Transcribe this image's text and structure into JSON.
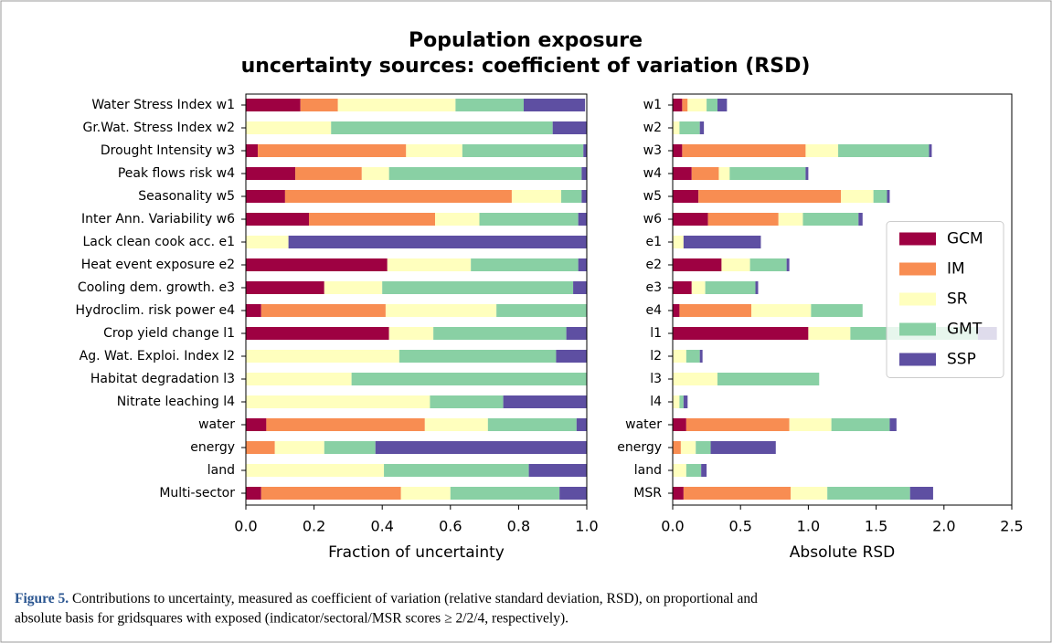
{
  "figure_title": [
    "Population exposure",
    "uncertainty sources: coefficient of variation (RSD)"
  ],
  "chart_data": [
    {
      "type": "stacked-barh",
      "xlabel": "Fraction of uncertainty",
      "categories": [
        "Water Stress Index w1",
        "Gr.Wat. Stress Index w2",
        "Drought Intensity w3",
        "Peak flows risk w4",
        "Seasonality w5",
        "Inter Ann. Variability w6",
        "Lack clean cook acc. e1",
        "Heat event exposure e2",
        "Cooling dem. growth. e3",
        "Hydroclim. risk power e4",
        "Crop yield change l1",
        "Ag. Wat. Exploi. Index l2",
        "Habitat degradation l3",
        "Nitrate leaching l4",
        "water",
        "energy",
        "land",
        "Multi-sector"
      ],
      "xlim": [
        0,
        1
      ],
      "xticks": [
        {
          "value": 0,
          "label": "0.0"
        },
        0.2,
        0.4,
        0.6,
        0.8,
        {
          "value": 1,
          "label": "1.0"
        }
      ],
      "series": [
        {
          "name": "GCM",
          "color": "#9e0142",
          "values": [
            0.16,
            0,
            0.035,
            0.145,
            0.115,
            0.185,
            0,
            0.415,
            0.23,
            0.045,
            0.42,
            0,
            0,
            0,
            0.06,
            0,
            0,
            0.045
          ]
        },
        {
          "name": "IM",
          "color": "#f88d52",
          "values": [
            0.11,
            0,
            0.435,
            0.195,
            0.665,
            0.37,
            0,
            0,
            0,
            0.365,
            0,
            0,
            0,
            0,
            0.465,
            0.085,
            0,
            0.41
          ]
        },
        {
          "name": "SR",
          "color": "#ffffbe",
          "values": [
            0.345,
            0.25,
            0.165,
            0.08,
            0.145,
            0.13,
            0.125,
            0.245,
            0.17,
            0.325,
            0.13,
            0.45,
            0.31,
            0.54,
            0.185,
            0.145,
            0.405,
            0.145
          ]
        },
        {
          "name": "GMT",
          "color": "#89d0a4",
          "values": [
            0.2,
            0.65,
            0.355,
            0.565,
            0.06,
            0.29,
            0,
            0.315,
            0.56,
            0.265,
            0.39,
            0.46,
            0.69,
            0.215,
            0.26,
            0.15,
            0.425,
            0.32
          ]
        },
        {
          "name": "SSP",
          "color": "#5e4fa2",
          "values": [
            0.18,
            0.1,
            0.01,
            0.015,
            0.015,
            0.025,
            0.875,
            0.025,
            0.04,
            0,
            0.06,
            0.09,
            0,
            0.245,
            0.03,
            0.62,
            0.17,
            0.08
          ]
        }
      ]
    },
    {
      "type": "stacked-barh",
      "xlabel": "Absolute RSD",
      "legend": "center right",
      "categories": [
        "w1",
        "w2",
        "w3",
        "w4",
        "w5",
        "w6",
        "e1",
        "e2",
        "e3",
        "e4",
        "l1",
        "l2",
        "l3",
        "l4",
        "water",
        "energy",
        "land",
        "MSR"
      ],
      "xlim": [
        0,
        2.5
      ],
      "xticks": [
        {
          "value": 0,
          "label": "0.0"
        },
        0.5,
        {
          "value": 1,
          "label": "1.0"
        },
        1.5,
        {
          "value": 2,
          "label": "2.0"
        },
        2.5
      ],
      "series": [
        {
          "name": "GCM",
          "color": "#9e0142",
          "values": [
            0.07,
            0,
            0.07,
            0.14,
            0.19,
            0.26,
            0,
            0.36,
            0.14,
            0.05,
            1.0,
            0,
            0,
            0,
            0.1,
            0,
            0,
            0.08
          ]
        },
        {
          "name": "IM",
          "color": "#f88d52",
          "values": [
            0.04,
            0,
            0.91,
            0.2,
            1.05,
            0.52,
            0,
            0,
            0,
            0.53,
            0,
            0,
            0,
            0,
            0.76,
            0.06,
            0,
            0.79
          ]
        },
        {
          "name": "SR",
          "color": "#ffffbe",
          "values": [
            0.14,
            0.05,
            0.24,
            0.08,
            0.24,
            0.18,
            0.08,
            0.21,
            0.1,
            0.44,
            0.31,
            0.1,
            0.33,
            0.05,
            0.31,
            0.11,
            0.1,
            0.27
          ]
        },
        {
          "name": "GMT",
          "color": "#89d0a4",
          "values": [
            0.08,
            0.15,
            0.67,
            0.56,
            0.1,
            0.41,
            0,
            0.27,
            0.37,
            0.38,
            0.94,
            0.1,
            0.75,
            0.03,
            0.43,
            0.11,
            0.11,
            0.61
          ]
        },
        {
          "name": "SSP",
          "color": "#5e4fa2",
          "values": [
            0.07,
            0.03,
            0.02,
            0.02,
            0.02,
            0.03,
            0.57,
            0.02,
            0.02,
            0,
            0.14,
            0.02,
            0,
            0.03,
            0.05,
            0.48,
            0.04,
            0.17
          ]
        }
      ]
    }
  ],
  "caption": {
    "label": "Figure 5.",
    "lines": [
      "Contributions to uncertainty, measured as coefficient of variation (relative standard deviation, RSD), on proportional and",
      "absolute basis for gridsquares with exposed (indicator/sectoral/MSR scores ≥ 2/2/4, respectively)."
    ]
  }
}
